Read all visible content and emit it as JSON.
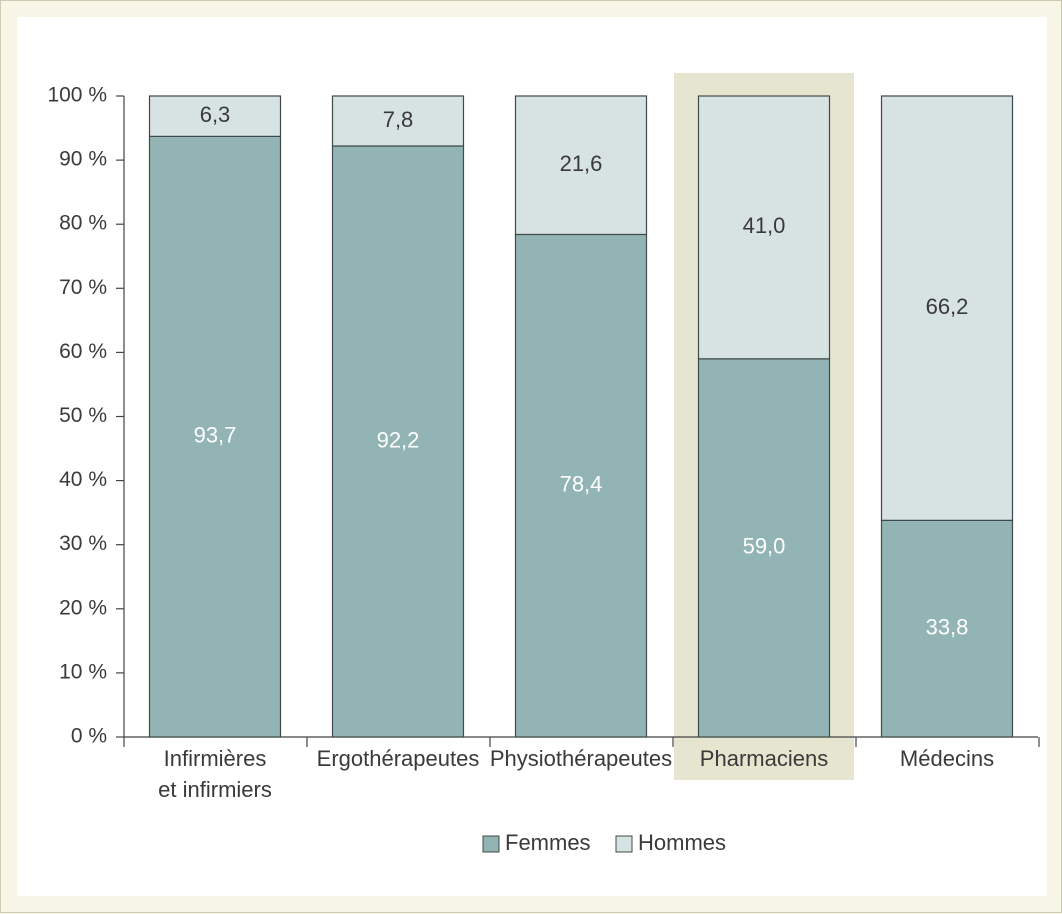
{
  "chart_data": {
    "type": "bar",
    "stacked": true,
    "categories": [
      [
        "Infirmières",
        "et infirmiers"
      ],
      [
        "Ergothérapeutes"
      ],
      [
        "Physiothérapeutes"
      ],
      [
        "Pharmaciens"
      ],
      [
        "Médecins"
      ]
    ],
    "series": [
      {
        "name": "Femmes",
        "values": [
          93.7,
          92.2,
          78.4,
          59.0,
          33.8
        ],
        "labels": [
          "93,7",
          "92,2",
          "78,4",
          "59,0",
          "33,8"
        ],
        "color": "#93b4b4"
      },
      {
        "name": "Hommes",
        "values": [
          6.3,
          7.8,
          21.6,
          41.0,
          66.2
        ],
        "labels": [
          "6,3",
          "7,8",
          "21,6",
          "41,0",
          "66,2"
        ],
        "color": "#d7e2e2"
      }
    ],
    "y_ticks": [
      "0 %",
      "10 %",
      "20 %",
      "30 %",
      "40 %",
      "50 %",
      "60 %",
      "70 %",
      "80 %",
      "90 %",
      "100 %"
    ],
    "ylim": [
      0,
      100
    ],
    "highlighted_category": "Pharmaciens",
    "highlight_color": "#e6e5cf",
    "legend_position": "bottom-center",
    "grid": false
  }
}
